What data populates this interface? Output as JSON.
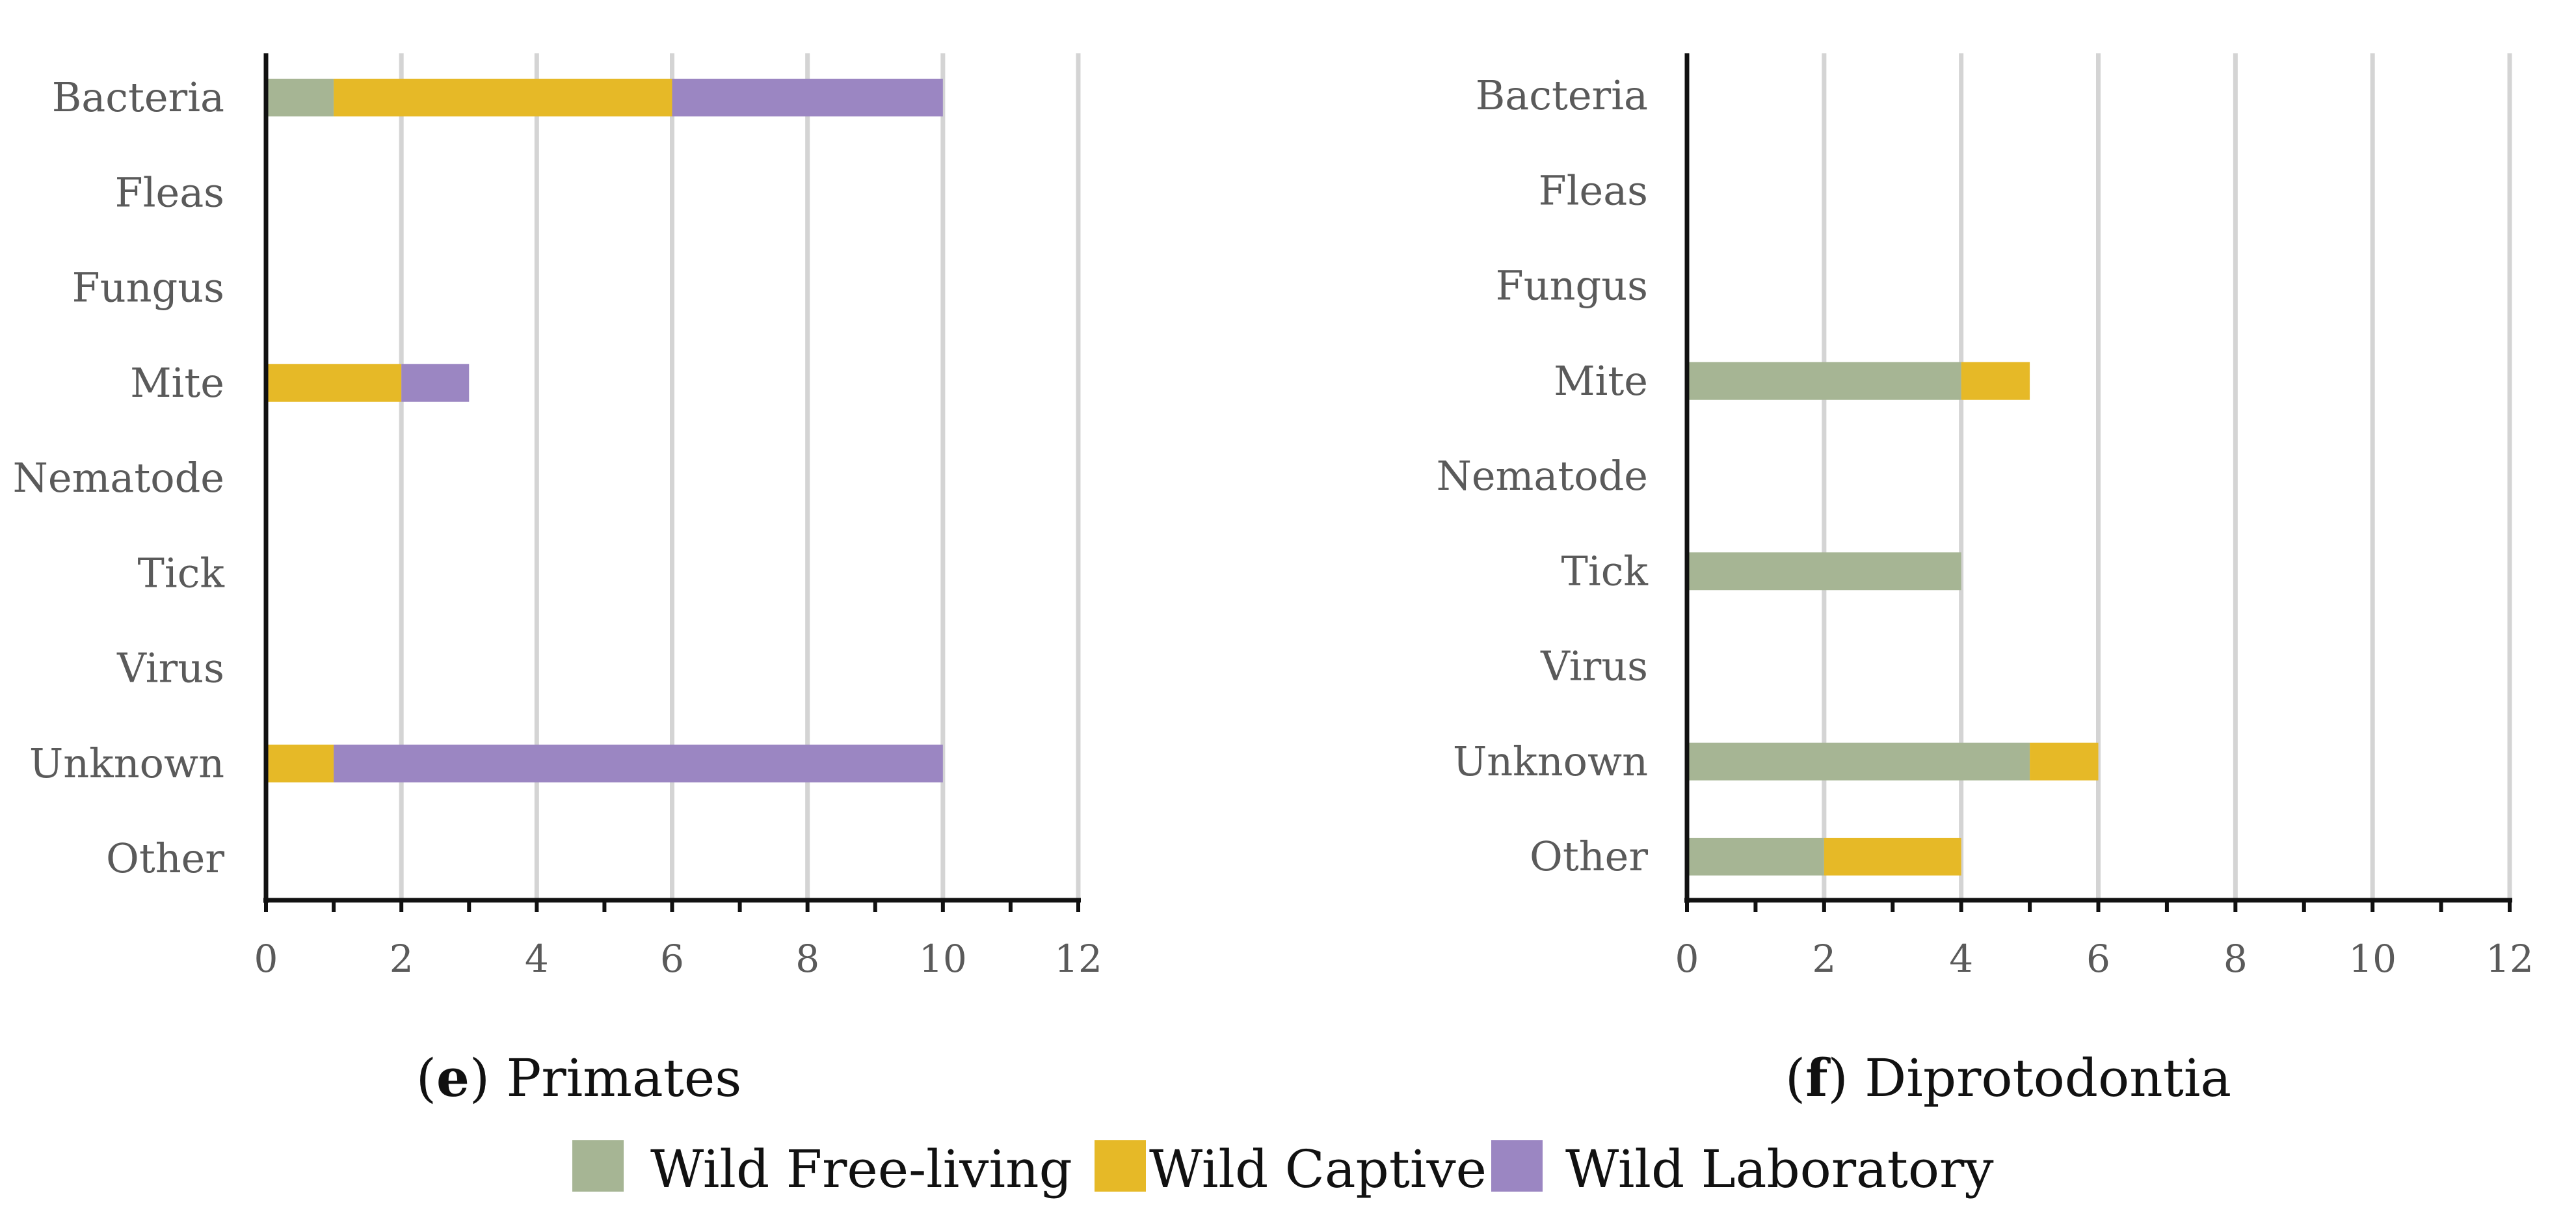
{
  "colors": {
    "Wild Free-living": "#a6b594",
    "Wild Captive": "#e6b927",
    "Wild Laboratory": "#9b86c2"
  },
  "legend": {
    "items": [
      "Wild Free-living",
      "Wild Captive",
      "Wild Laboratory"
    ]
  },
  "chart_data": [
    {
      "type": "bar",
      "orientation": "horizontal",
      "stacked": true,
      "panel": "e",
      "title": "Primates",
      "categories": [
        "Bacteria",
        "Fleas",
        "Fungus",
        "Mite",
        "Nematode",
        "Tick",
        "Virus",
        "Unknown",
        "Other"
      ],
      "series": [
        {
          "name": "Wild Free-living",
          "values": [
            1,
            0,
            0,
            0,
            0,
            0,
            0,
            0,
            0
          ]
        },
        {
          "name": "Wild Captive",
          "values": [
            5,
            0,
            0,
            2,
            0,
            0,
            0,
            1,
            0
          ]
        },
        {
          "name": "Wild Laboratory",
          "values": [
            4,
            0,
            0,
            1,
            0,
            0,
            0,
            9,
            0
          ]
        }
      ],
      "xlim": [
        0,
        12
      ],
      "xticks": [
        0,
        2,
        4,
        6,
        8,
        10,
        12
      ],
      "grid": true
    },
    {
      "type": "bar",
      "orientation": "horizontal",
      "stacked": true,
      "panel": "f",
      "title": "Diprotodontia",
      "categories": [
        "Bacteria",
        "Fleas",
        "Fungus",
        "Mite",
        "Nematode",
        "Tick",
        "Virus",
        "Unknown",
        "Other"
      ],
      "series": [
        {
          "name": "Wild Free-living",
          "values": [
            0,
            0,
            0,
            4,
            0,
            4,
            0,
            5,
            2
          ]
        },
        {
          "name": "Wild Captive",
          "values": [
            0,
            0,
            0,
            1,
            0,
            0,
            0,
            1,
            2
          ]
        },
        {
          "name": "Wild Laboratory",
          "values": [
            0,
            0,
            0,
            0,
            0,
            0,
            0,
            0,
            0
          ]
        }
      ],
      "xlim": [
        0,
        12
      ],
      "xticks": [
        0,
        2,
        4,
        6,
        8,
        10,
        12
      ],
      "grid": true
    }
  ]
}
